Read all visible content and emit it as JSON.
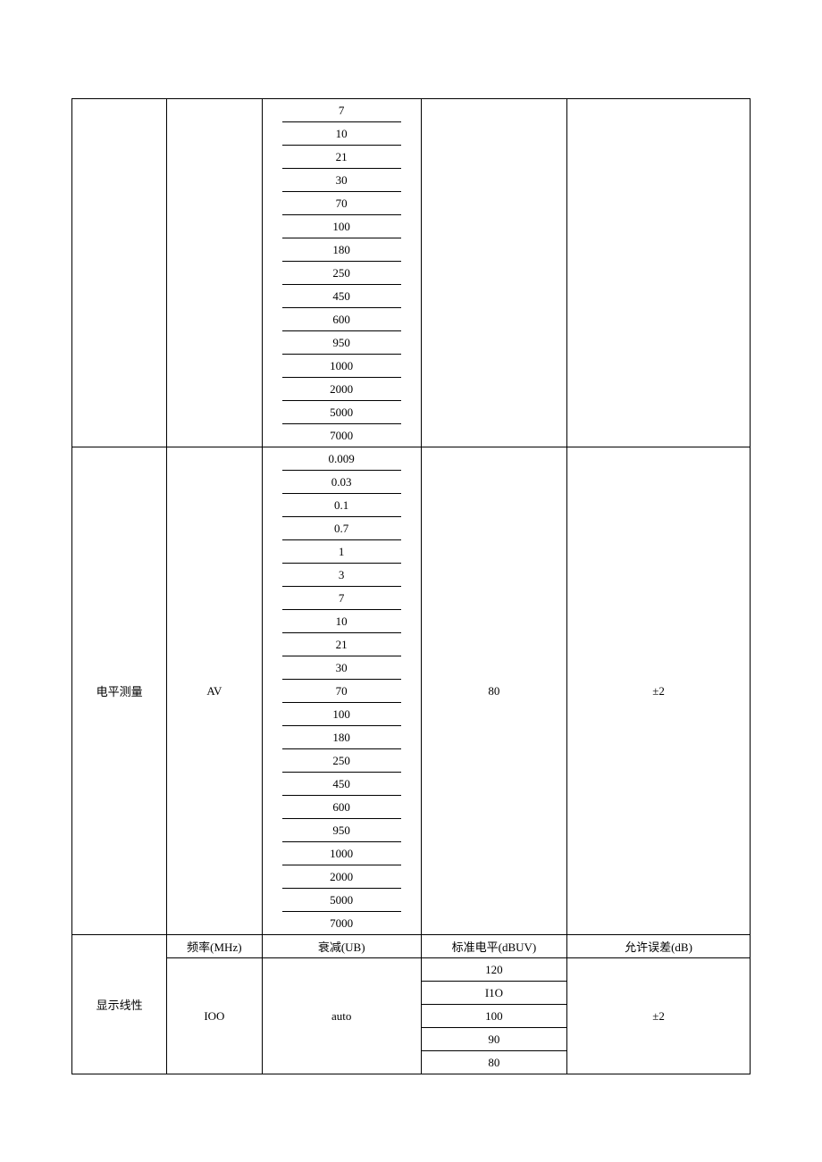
{
  "section1": {
    "values": [
      "7",
      "10",
      "21",
      "30",
      "70",
      "100",
      "180",
      "250",
      "450",
      "600",
      "950",
      "1000",
      "2000",
      "5000",
      "7000"
    ]
  },
  "section2": {
    "col1": "电平测量",
    "col2": "AV",
    "values": [
      "0.009",
      "0.03",
      "0.1",
      "0.7",
      "1",
      "3",
      "7",
      "10",
      "21",
      "30",
      "70",
      "100",
      "180",
      "250",
      "450",
      "600",
      "950",
      "1000",
      "2000",
      "5000",
      "7000"
    ],
    "col4": "80",
    "col5": "±2"
  },
  "section3": {
    "header": {
      "col2": "频率(MHz)",
      "col3": "衰减(UB)",
      "col4": "标准电平(dBUV)",
      "col5": "允许误差(dB)"
    },
    "col1": "显示线性",
    "col2": "IOO",
    "col3": "auto",
    "values": [
      "120",
      "I1O",
      "100",
      "90",
      "80"
    ],
    "col5": "±2"
  },
  "colors": {
    "border": "#000000",
    "background": "#ffffff",
    "text": "#000000"
  },
  "font_size": 13
}
